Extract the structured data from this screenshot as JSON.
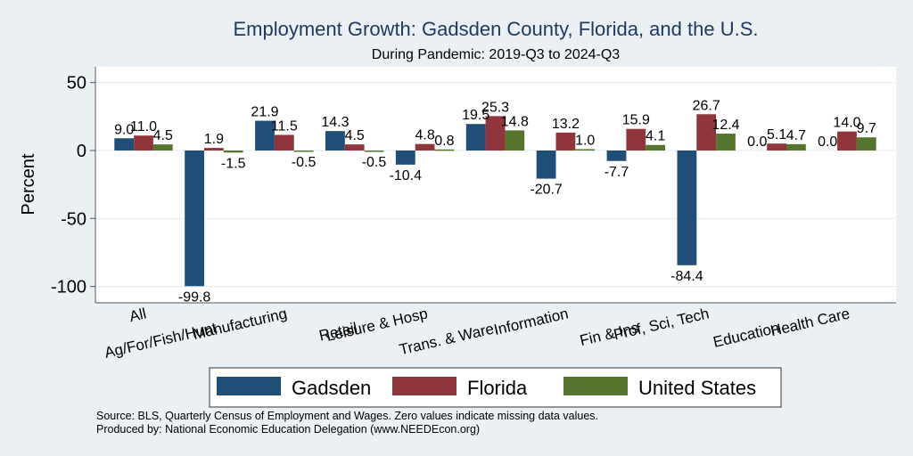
{
  "chart_data": {
    "type": "bar",
    "title": "Employment Growth: Gadsden County, Florida, and the U.S.",
    "subtitle": "During Pandemic: 2019-Q3 to 2024-Q3",
    "xlabel": "",
    "ylabel": "Percent",
    "ylim": [
      -112,
      62
    ],
    "yticks": [
      50,
      0,
      -50,
      -100
    ],
    "ytick_labels": [
      "50",
      "0",
      "-50",
      "-100"
    ],
    "grid": true,
    "legend_position": "bottom",
    "categories": [
      "All",
      "Ag/For/Fish/Hunt",
      "Manufacturing",
      "Retail",
      "Leisure & Hosp",
      "Trans. & Ware.",
      "Information",
      "Fin & Ins",
      "Prof, Sci, Tech",
      "Education",
      "Health Care"
    ],
    "series": [
      {
        "name": "Gadsden",
        "color": "#1f4e79",
        "values": [
          9.0,
          -99.8,
          21.9,
          14.3,
          -10.4,
          19.5,
          -20.7,
          -7.7,
          -84.4,
          0.0,
          0.0
        ],
        "labels": [
          "9.0",
          "-99.8",
          "21.9",
          "14.3",
          "-10.4",
          "19.5",
          "-20.7",
          "-7.7",
          "-84.4",
          "0.0",
          "0.0"
        ]
      },
      {
        "name": "Florida",
        "color": "#90353b",
        "values": [
          11.0,
          1.9,
          11.5,
          4.5,
          4.8,
          25.3,
          13.2,
          15.9,
          26.7,
          5.1,
          14.0
        ],
        "labels": [
          "11.0",
          "1.9",
          "11.5",
          "4.5",
          "4.8",
          "25.3",
          "13.2",
          "15.9",
          "26.7",
          "5.1",
          "14.0"
        ]
      },
      {
        "name": "United States",
        "color": "#55752f",
        "values": [
          4.5,
          -1.5,
          -0.5,
          -0.5,
          0.8,
          14.8,
          1.0,
          4.1,
          12.4,
          4.7,
          9.7
        ],
        "labels": [
          "4.5",
          "-1.5",
          "-0.5",
          "-0.5",
          "0.8",
          "14.8",
          "1.0",
          "4.1",
          "12.4",
          "4.7",
          "9.7"
        ]
      }
    ],
    "notes": [
      "Source: BLS, Quarterly Census of Employment and Wages. Zero values indicate missing data values.",
      "Produced by: National Economic Education Delegation (www.NEEDEcon.org)"
    ]
  }
}
